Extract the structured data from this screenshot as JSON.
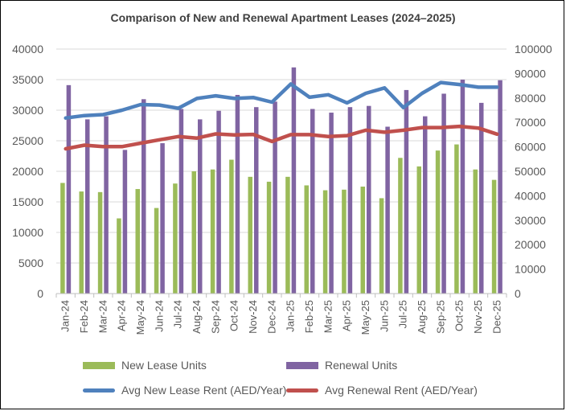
{
  "chart_data": {
    "type": "bar+line",
    "title": "Comparison of New and Renewal Apartment Leases (2024–2025)",
    "categories": [
      "Jan-24",
      "Feb-24",
      "Mar-24",
      "Apr-24",
      "May-24",
      "Jun-24",
      "Jul-24",
      "Aug-24",
      "Sep-24",
      "Oct-24",
      "Nov-24",
      "Dec-24",
      "Jan-25",
      "Feb-25",
      "Mar-25",
      "Apr-25",
      "May-25",
      "Jun-25",
      "Jul-25",
      "Aug-25",
      "Sep-25",
      "Oct-25",
      "Nov-25",
      "Dec-25"
    ],
    "left_axis": {
      "min": 0,
      "max": 40000,
      "step": 5000,
      "ticks": [
        "0",
        "5000",
        "10000",
        "15000",
        "20000",
        "25000",
        "30000",
        "35000",
        "40000"
      ]
    },
    "right_axis": {
      "min": 0,
      "max": 100000,
      "step": 10000,
      "ticks": [
        "0",
        "10000",
        "20000",
        "30000",
        "40000",
        "50000",
        "60000",
        "70000",
        "80000",
        "90000",
        "100000"
      ]
    },
    "series": [
      {
        "name": "New Lease Units",
        "type": "bar",
        "axis": "left",
        "color": "#9bbb59",
        "values": [
          18100,
          16700,
          16600,
          12300,
          17100,
          14000,
          18000,
          20000,
          20300,
          21900,
          19100,
          18300,
          19100,
          17700,
          16900,
          17000,
          17500,
          15600,
          22200,
          20800,
          23400,
          24400,
          20300,
          18600
        ]
      },
      {
        "name": "Renewal Units",
        "type": "bar",
        "axis": "left",
        "color": "#8064a2",
        "values": [
          34100,
          28500,
          29000,
          23500,
          31800,
          24600,
          30200,
          28500,
          29900,
          32500,
          30500,
          31400,
          37000,
          30200,
          29600,
          30500,
          30700,
          27300,
          33300,
          29000,
          32700,
          35000,
          31200,
          34900
        ]
      },
      {
        "name": "Avg New Lease Rent (AED/Year)",
        "type": "line",
        "axis": "right",
        "color": "#4f81bd",
        "values": [
          71800,
          72800,
          73200,
          75000,
          77300,
          77100,
          75800,
          79800,
          80900,
          79800,
          80200,
          78300,
          85700,
          80300,
          81300,
          78000,
          81900,
          84100,
          76100,
          81900,
          86300,
          85500,
          84400,
          84400
        ]
      },
      {
        "name": "Avg Renewal Rent (AED/Year)",
        "type": "line",
        "axis": "right",
        "color": "#c0504d",
        "values": [
          59200,
          60700,
          60100,
          60100,
          61500,
          62900,
          64200,
          63600,
          65300,
          64900,
          65100,
          62200,
          65000,
          65000,
          64200,
          64600,
          66800,
          66000,
          66800,
          67900,
          67900,
          68400,
          67700,
          65200
        ]
      }
    ],
    "legend_position": "bottom"
  }
}
